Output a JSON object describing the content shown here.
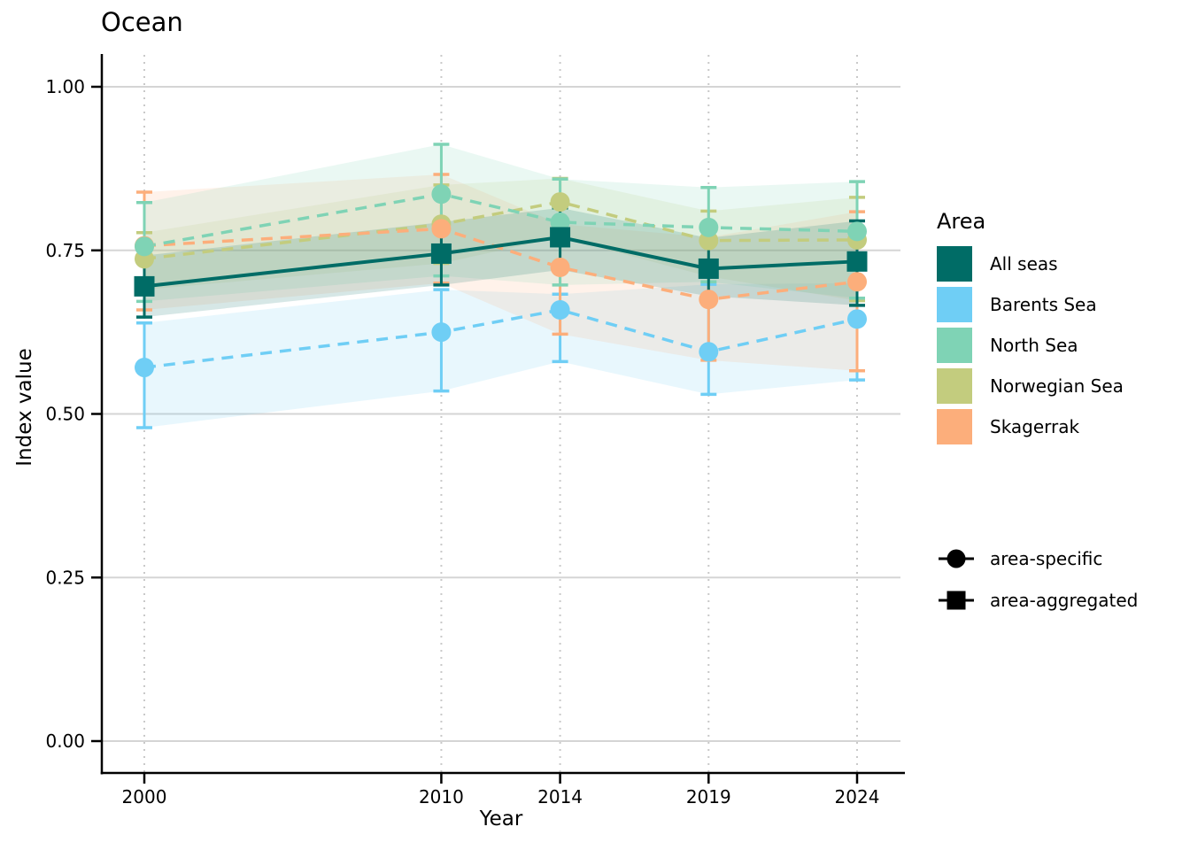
{
  "title": "Ocean",
  "axes": {
    "x_label": "Year",
    "y_label": "Index value",
    "x_ticks": [
      "2000",
      "2010",
      "2014",
      "2019",
      "2024"
    ],
    "y_ticks": [
      "1.00",
      "0.75",
      "0.50",
      "0.25",
      "0.00"
    ],
    "y_tick_values": [
      1.0,
      0.75,
      0.5,
      0.25,
      0.0
    ]
  },
  "legend_area": {
    "title": "Area",
    "items": [
      {
        "label": "All seas",
        "color": "#006C66"
      },
      {
        "label": "Barents Sea",
        "color": "#6FCEF5"
      },
      {
        "label": "North Sea",
        "color": "#7FD3B5"
      },
      {
        "label": "Norwegian Sea",
        "color": "#C3CC7E"
      },
      {
        "label": "Skagerrak",
        "color": "#FCAE7B"
      }
    ]
  },
  "legend_shape": {
    "items": [
      {
        "label": "area-specific",
        "shape": "circle"
      },
      {
        "label": "area-aggregated",
        "shape": "square"
      }
    ]
  },
  "chart_data": {
    "type": "line",
    "title": "Ocean",
    "xlabel": "Year",
    "ylabel": "Index value",
    "x": [
      2000,
      2010,
      2014,
      2019,
      2024
    ],
    "ylim": [
      -0.04,
      1.05
    ],
    "grid": "on",
    "legend_position": "right",
    "series": [
      {
        "id": "barents-sea",
        "name": "Barents Sea",
        "type": "area-specific",
        "color": "#6FCEF5",
        "marker": "circle",
        "line": "dashed",
        "values": [
          0.571,
          0.625,
          0.659,
          0.595,
          0.645
        ],
        "lower": [
          0.479,
          0.535,
          0.58,
          0.53,
          0.552
        ],
        "upper": [
          0.639,
          0.69,
          0.683,
          0.698,
          0.7
        ]
      },
      {
        "id": "norwegian-sea",
        "name": "Norwegian Sea",
        "type": "area-specific",
        "color": "#C3CC7E",
        "marker": "circle",
        "line": "dashed",
        "values": [
          0.737,
          0.79,
          0.824,
          0.765,
          0.766
        ],
        "lower": [
          0.69,
          0.73,
          0.77,
          0.71,
          0.673
        ],
        "upper": [
          0.777,
          0.85,
          0.86,
          0.81,
          0.831
        ]
      },
      {
        "id": "skagerrak",
        "name": "Skagerrak",
        "type": "area-specific",
        "color": "#FCAE7B",
        "marker": "circle",
        "line": "dashed",
        "values": [
          0.757,
          0.783,
          0.724,
          0.675,
          0.702
        ],
        "lower": [
          0.659,
          0.7,
          0.622,
          0.582,
          0.566
        ],
        "upper": [
          0.839,
          0.866,
          0.79,
          0.77,
          0.809
        ]
      },
      {
        "id": "north-sea",
        "name": "North Sea",
        "type": "area-specific",
        "color": "#7FD3B5",
        "marker": "circle",
        "line": "dashed",
        "values": [
          0.756,
          0.836,
          0.793,
          0.785,
          0.779
        ],
        "lower": [
          0.672,
          0.711,
          0.697,
          0.702,
          0.677
        ],
        "upper": [
          0.823,
          0.912,
          0.859,
          0.846,
          0.855
        ]
      },
      {
        "id": "all-seas",
        "name": "All seas",
        "type": "area-aggregated",
        "color": "#006C66",
        "marker": "square",
        "line": "solid",
        "values": [
          0.695,
          0.745,
          0.77,
          0.722,
          0.733
        ],
        "lower": [
          0.648,
          0.697,
          0.72,
          0.68,
          0.666
        ],
        "upper": [
          0.742,
          0.793,
          0.815,
          0.769,
          0.795
        ]
      }
    ]
  }
}
